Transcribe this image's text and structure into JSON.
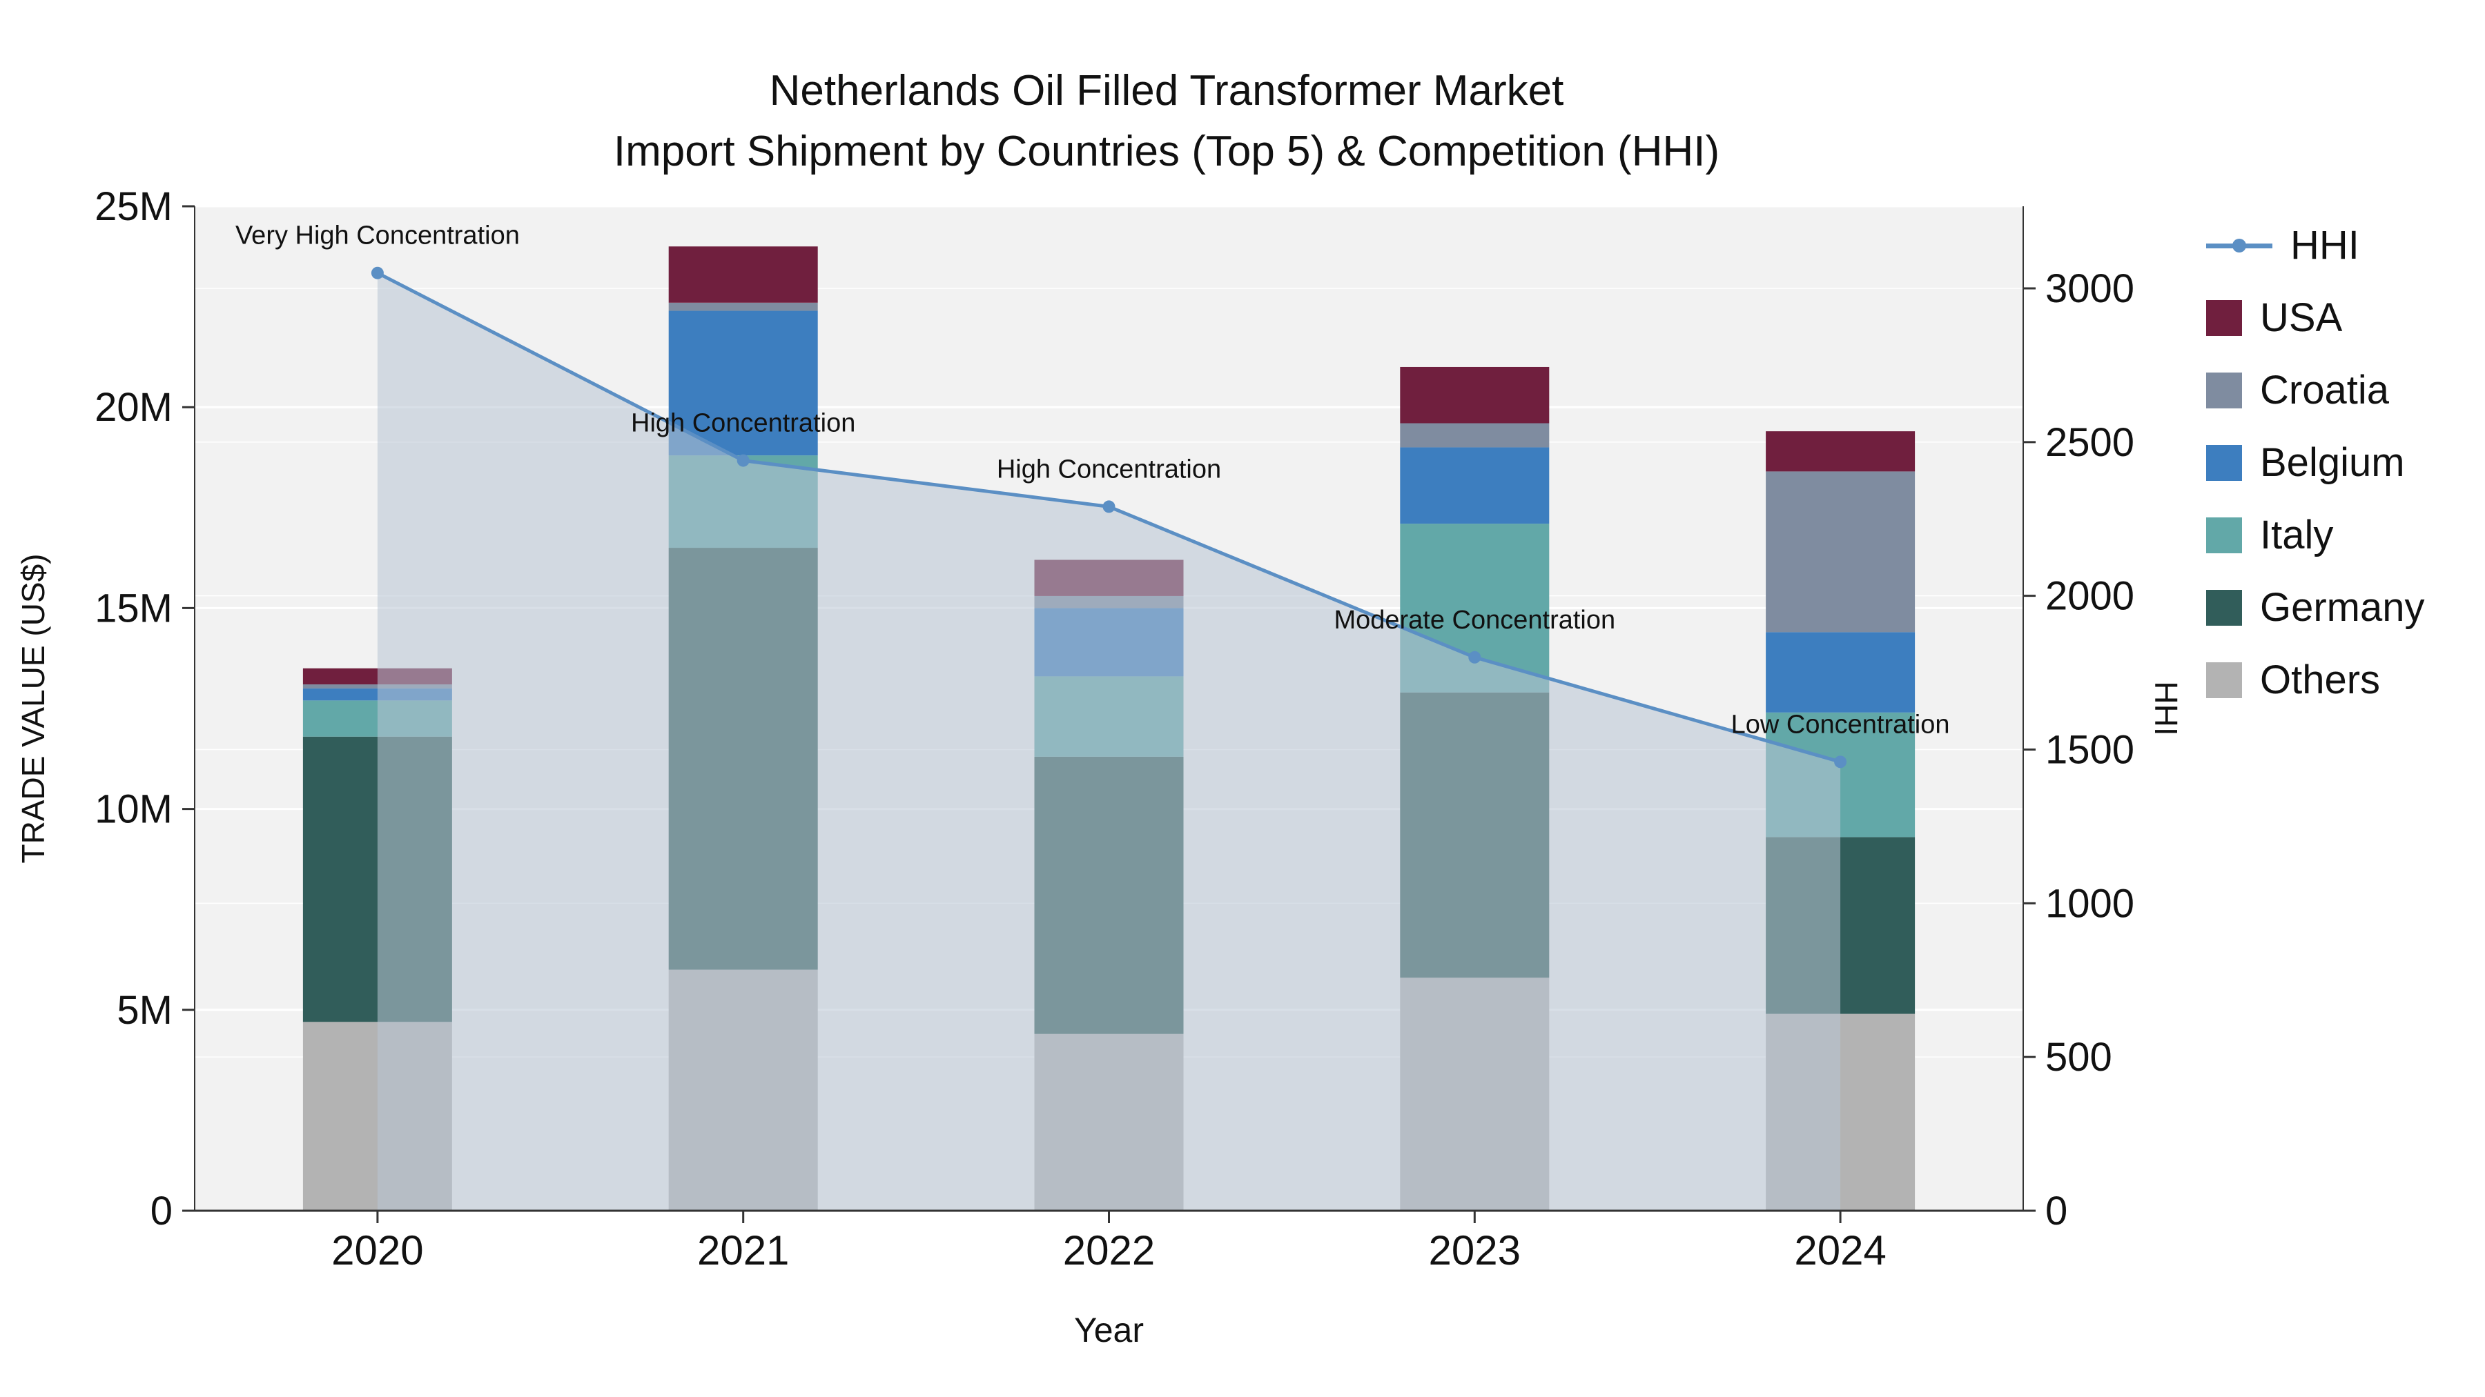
{
  "title_line1": "Netherlands Oil Filled Transformer Market",
  "title_line2": "Import Shipment by Countries (Top 5) & Competition (HHI)",
  "chart_data": {
    "type": "bar",
    "subtype": "stacked-bar-with-line",
    "categories": [
      "2020",
      "2021",
      "2022",
      "2023",
      "2024"
    ],
    "xlabel": "Year",
    "ylabel_left": "TRADE VALUE (US$)",
    "ylabel_right": "HHI",
    "unit": "millions USD",
    "y_left_max": 25,
    "y_left_ticks": [
      {
        "value": 0,
        "label": "0"
      },
      {
        "value": 5,
        "label": "5M"
      },
      {
        "value": 10,
        "label": "10M"
      },
      {
        "value": 15,
        "label": "15M"
      },
      {
        "value": 20,
        "label": "20M"
      },
      {
        "value": 25,
        "label": "25M"
      }
    ],
    "y_right_axis_max": 3267,
    "y_right_ticks": [
      {
        "value": 0,
        "label": "0"
      },
      {
        "value": 500,
        "label": "500"
      },
      {
        "value": 1000,
        "label": "1000"
      },
      {
        "value": 1500,
        "label": "1500"
      },
      {
        "value": 2000,
        "label": "2000"
      },
      {
        "value": 2500,
        "label": "2500"
      },
      {
        "value": 3000,
        "label": "3000"
      }
    ],
    "series": [
      {
        "name": "Others",
        "color": "#b3b3b3",
        "values": [
          4.7,
          6.0,
          4.4,
          5.8,
          4.9
        ]
      },
      {
        "name": "Germany",
        "color": "#315d5a",
        "values": [
          7.1,
          10.5,
          6.9,
          7.1,
          4.4
        ]
      },
      {
        "name": "Italy",
        "color": "#62a8a8",
        "values": [
          0.9,
          2.3,
          2.0,
          4.2,
          3.1
        ]
      },
      {
        "name": "Belgium",
        "color": "#3d7ebf",
        "values": [
          0.3,
          3.6,
          1.7,
          1.9,
          2.0
        ]
      },
      {
        "name": "Croatia",
        "color": "#7f8ca0",
        "values": [
          0.1,
          0.2,
          0.3,
          0.6,
          4.0
        ]
      },
      {
        "name": "USA",
        "color": "#701f3e",
        "values": [
          0.4,
          1.4,
          0.9,
          1.4,
          1.0
        ]
      }
    ],
    "hhi": {
      "name": "HHI",
      "line_color": "#5b8fc4",
      "area_color": "#b8c4d4",
      "area_opacity": 0.55,
      "values": [
        3050,
        2440,
        2290,
        1800,
        1460
      ],
      "annotations": [
        "Very High Concentration",
        "High Concentration",
        "High Concentration",
        "Moderate Concentration",
        "Low Concentration"
      ]
    },
    "plot_bg": "#f2f2f2",
    "grid_color": "#ffffff",
    "legend_position": "right"
  },
  "legend": {
    "items": [
      {
        "label": "HHI",
        "swatch": "line",
        "color": "#5b8fc4"
      },
      {
        "label": "USA",
        "swatch": "square",
        "color": "#701f3e"
      },
      {
        "label": "Croatia",
        "swatch": "square",
        "color": "#7f8ca0"
      },
      {
        "label": "Belgium",
        "swatch": "square",
        "color": "#3d7ebf"
      },
      {
        "label": "Italy",
        "swatch": "square",
        "color": "#62a8a8"
      },
      {
        "label": "Germany",
        "swatch": "square",
        "color": "#315d5a"
      },
      {
        "label": "Others",
        "swatch": "square",
        "color": "#b3b3b3"
      }
    ]
  }
}
